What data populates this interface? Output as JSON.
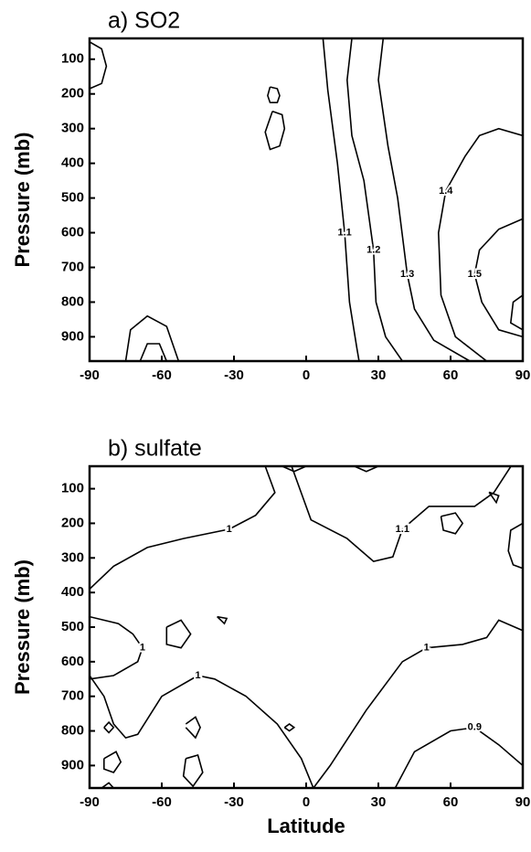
{
  "chart_data": [
    {
      "type": "contour",
      "title": "a) SO2",
      "ylabel": "Pressure (mb)",
      "xlim": [
        -90,
        90
      ],
      "ylim": [
        40,
        970
      ],
      "y_inverted": true,
      "color": "#000000",
      "xticks": [
        -90,
        -60,
        -30,
        0,
        30,
        60,
        90
      ],
      "yticks": [
        100,
        200,
        300,
        400,
        500,
        600,
        700,
        800,
        900
      ],
      "contours": [
        {
          "level": 1.1,
          "lat": [
            7,
            9,
            13,
            16,
            18,
            21,
            22
          ],
          "p": [
            40,
            190,
            400,
            600,
            800,
            930,
            970
          ]
        },
        {
          "level": 1.2,
          "lat": [
            19,
            17,
            19,
            24,
            28,
            29,
            33,
            40
          ],
          "p": [
            40,
            160,
            320,
            450,
            650,
            800,
            900,
            970
          ]
        },
        {
          "level": 1.3,
          "lat": [
            32,
            30,
            34,
            38,
            42,
            45,
            53,
            68
          ],
          "p": [
            40,
            160,
            350,
            500,
            720,
            820,
            910,
            970
          ]
        },
        {
          "level": 1.4,
          "lat": [
            75,
            62,
            56,
            55,
            58,
            66,
            72,
            80,
            90
          ],
          "p": [
            970,
            900,
            780,
            600,
            480,
            380,
            320,
            300,
            320
          ]
        },
        {
          "level": 1.5,
          "lat": [
            90,
            80,
            72,
            70,
            73,
            80,
            90
          ],
          "p": [
            560,
            590,
            650,
            720,
            800,
            880,
            900
          ]
        }
      ],
      "loops": [
        {
          "lat": [
            -90,
            -85,
            -83,
            -85,
            -90
          ],
          "p": [
            50,
            70,
            120,
            170,
            185
          ]
        },
        {
          "lat": [
            -15,
            -12,
            -11,
            -12,
            -15,
            -16,
            -15
          ],
          "p": [
            180,
            185,
            205,
            225,
            225,
            205,
            180
          ]
        },
        {
          "lat": [
            -14,
            -10,
            -9,
            -11,
            -15,
            -17,
            -14
          ],
          "p": [
            250,
            260,
            300,
            350,
            360,
            310,
            250
          ]
        },
        {
          "lat": [
            -75,
            -73,
            -66,
            -58,
            -53
          ],
          "p": [
            970,
            880,
            840,
            870,
            970
          ]
        },
        {
          "lat": [
            -69,
            -66,
            -61,
            -58
          ],
          "p": [
            970,
            920,
            920,
            970
          ]
        },
        {
          "lat": [
            90,
            86,
            85,
            90
          ],
          "p": [
            780,
            800,
            860,
            880
          ]
        }
      ]
    },
    {
      "type": "contour",
      "title": "b) sulfate",
      "ylabel": "Pressure (mb)",
      "xlabel": "Latitude",
      "xlim": [
        -90,
        90
      ],
      "ylim": [
        35,
        965
      ],
      "y_inverted": true,
      "color": "#000000",
      "xticks": [
        -90,
        -60,
        -30,
        0,
        30,
        60,
        90
      ],
      "yticks": [
        100,
        200,
        300,
        400,
        500,
        600,
        700,
        800,
        900
      ],
      "contours": [
        {
          "level": 1.1,
          "lat": [
            -6,
            2,
            17,
            28,
            36,
            40,
            51,
            70,
            78,
            85
          ],
          "p": [
            36,
            190,
            244,
            310,
            297,
            217,
            151,
            151,
            111,
            36
          ]
        },
        {
          "level": 1,
          "lat": [
            -90,
            -80,
            -66,
            -51,
            -32,
            -21,
            -13,
            -17
          ],
          "p": [
            390,
            324,
            270,
            244,
            217,
            177,
            111,
            35
          ]
        },
        {
          "level": 1,
          "lat": [
            -90,
            -78,
            -72,
            -68,
            -70,
            -80,
            -90
          ],
          "p": [
            470,
            490,
            520,
            560,
            600,
            640,
            650
          ]
        },
        {
          "level": 1,
          "lat": [
            -90,
            -84,
            -80,
            -75,
            -70,
            -60,
            -45,
            -38,
            -25,
            -12,
            -2,
            3
          ],
          "p": [
            640,
            700,
            780,
            820,
            810,
            700,
            640,
            650,
            700,
            780,
            880,
            965
          ]
        },
        {
          "level": 1,
          "lat": [
            3,
            10,
            25,
            40,
            50,
            65,
            75,
            80,
            90
          ],
          "p": [
            965,
            900,
            740,
            600,
            560,
            550,
            530,
            480,
            510
          ]
        },
        {
          "level": 0.9,
          "lat": [
            37,
            45,
            60,
            70,
            80,
            90
          ],
          "p": [
            965,
            860,
            800,
            790,
            840,
            900
          ]
        }
      ],
      "loops": [
        {
          "lat": [
            -84,
            -82,
            -80,
            -82,
            -84
          ],
          "p": [
            790,
            775,
            790,
            805,
            790
          ]
        },
        {
          "lat": [
            -84,
            -79,
            -77,
            -80,
            -84,
            -84
          ],
          "p": [
            880,
            860,
            890,
            920,
            910,
            880
          ]
        },
        {
          "lat": [
            -58,
            -52,
            -48,
            -52,
            -58,
            -58
          ],
          "p": [
            500,
            480,
            520,
            560,
            550,
            500
          ]
        },
        {
          "lat": [
            -50,
            -46,
            -44,
            -46,
            -50
          ],
          "p": [
            780,
            760,
            790,
            820,
            790
          ]
        },
        {
          "lat": [
            -50,
            -45,
            -43,
            -47,
            -51,
            -50
          ],
          "p": [
            880,
            870,
            920,
            960,
            930,
            880
          ]
        },
        {
          "lat": [
            -37,
            -33,
            -34,
            -37
          ],
          "p": [
            470,
            475,
            490,
            470
          ]
        },
        {
          "lat": [
            -9,
            -7,
            -5,
            -7,
            -9
          ],
          "p": [
            790,
            780,
            790,
            800,
            790
          ]
        },
        {
          "lat": [
            56,
            62,
            65,
            62,
            57,
            56
          ],
          "p": [
            180,
            170,
            200,
            230,
            220,
            180
          ]
        },
        {
          "lat": [
            76,
            80,
            79,
            76
          ],
          "p": [
            110,
            120,
            140,
            110
          ]
        },
        {
          "lat": [
            90,
            85,
            84,
            86,
            90
          ],
          "p": [
            200,
            220,
            280,
            320,
            330
          ]
        },
        {
          "lat": [
            -85,
            -82,
            -80
          ],
          "p": [
            965,
            950,
            965
          ]
        },
        {
          "lat": [
            -10,
            -5,
            0
          ],
          "p": [
            35,
            50,
            35
          ]
        },
        {
          "lat": [
            20,
            25,
            30
          ],
          "p": [
            35,
            50,
            35
          ]
        }
      ]
    }
  ]
}
